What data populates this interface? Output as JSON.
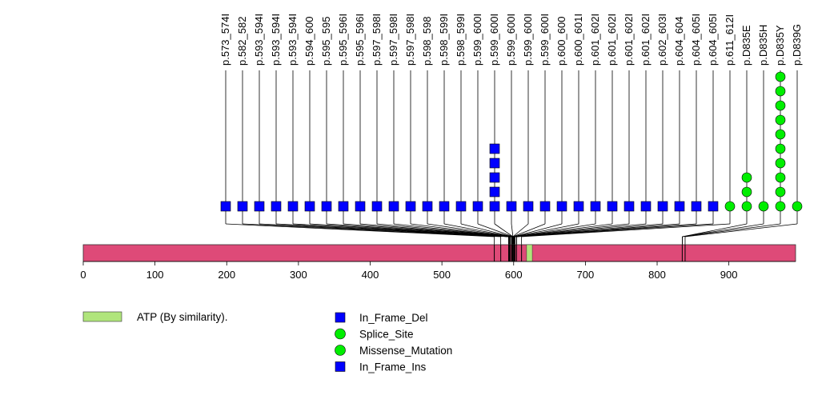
{
  "chart_data": {
    "type": "lollipop",
    "protein_length": 993,
    "axis": {
      "range": [
        0,
        993
      ],
      "ticks": [
        0,
        100,
        200,
        300,
        400,
        500,
        600,
        700,
        800,
        900
      ]
    },
    "colors": {
      "protein_bar": "#de4a78",
      "domain": "#b0e57c",
      "in_frame_del": "#0000ff",
      "in_frame_ins": "#0000ff",
      "splice_site": "#00ee00",
      "missense": "#00ee00",
      "stem": "#000000"
    },
    "domains": [
      {
        "label": "ATP (By similarity).",
        "start": 618,
        "end": 626
      }
    ],
    "lollipops": [
      {
        "label": "p.573_574I",
        "position": 573,
        "count": 1,
        "type": "In_Frame_Ins"
      },
      {
        "label": "p.582_582",
        "position": 582,
        "count": 1,
        "type": "In_Frame_Del"
      },
      {
        "label": "p.593_594I",
        "position": 593,
        "count": 1,
        "type": "In_Frame_Ins"
      },
      {
        "label": "p.593_594I",
        "position": 593,
        "count": 1,
        "type": "In_Frame_Ins"
      },
      {
        "label": "p.593_594I",
        "position": 593,
        "count": 1,
        "type": "In_Frame_Ins"
      },
      {
        "label": "p.594_600",
        "position": 594,
        "count": 1,
        "type": "In_Frame_Del"
      },
      {
        "label": "p.595_595",
        "position": 595,
        "count": 1,
        "type": "In_Frame_Del"
      },
      {
        "label": "p.595_596I",
        "position": 595,
        "count": 1,
        "type": "In_Frame_Ins"
      },
      {
        "label": "p.595_596I",
        "position": 595,
        "count": 1,
        "type": "In_Frame_Ins"
      },
      {
        "label": "p.597_598I",
        "position": 597,
        "count": 1,
        "type": "In_Frame_Ins"
      },
      {
        "label": "p.597_598I",
        "position": 597,
        "count": 1,
        "type": "In_Frame_Ins"
      },
      {
        "label": "p.597_598I",
        "position": 597,
        "count": 1,
        "type": "In_Frame_Ins"
      },
      {
        "label": "p.598_598",
        "position": 598,
        "count": 1,
        "type": "In_Frame_Del"
      },
      {
        "label": "p.598_599I",
        "position": 598,
        "count": 1,
        "type": "In_Frame_Ins"
      },
      {
        "label": "p.598_599I",
        "position": 598,
        "count": 1,
        "type": "In_Frame_Ins"
      },
      {
        "label": "p.599_600I",
        "position": 599,
        "count": 1,
        "type": "In_Frame_Ins"
      },
      {
        "label": "p.599_600I",
        "position": 599,
        "count": 5,
        "type": "In_Frame_Ins"
      },
      {
        "label": "p.599_600I",
        "position": 599,
        "count": 1,
        "type": "In_Frame_Ins"
      },
      {
        "label": "p.599_600I",
        "position": 599,
        "count": 1,
        "type": "In_Frame_Ins"
      },
      {
        "label": "p.599_600I",
        "position": 599,
        "count": 1,
        "type": "In_Frame_Ins"
      },
      {
        "label": "p.600_600",
        "position": 600,
        "count": 1,
        "type": "In_Frame_Del"
      },
      {
        "label": "p.600_601I",
        "position": 600,
        "count": 1,
        "type": "In_Frame_Ins"
      },
      {
        "label": "p.601_602I",
        "position": 601,
        "count": 1,
        "type": "In_Frame_Ins"
      },
      {
        "label": "p.601_602I",
        "position": 601,
        "count": 1,
        "type": "In_Frame_Ins"
      },
      {
        "label": "p.601_602I",
        "position": 601,
        "count": 1,
        "type": "In_Frame_Ins"
      },
      {
        "label": "p.601_602I",
        "position": 601,
        "count": 1,
        "type": "In_Frame_Ins"
      },
      {
        "label": "p.602_603I",
        "position": 602,
        "count": 1,
        "type": "In_Frame_Ins"
      },
      {
        "label": "p.604_604",
        "position": 604,
        "count": 1,
        "type": "In_Frame_Del"
      },
      {
        "label": "p.604_605I",
        "position": 604,
        "count": 1,
        "type": "In_Frame_Ins"
      },
      {
        "label": "p.604_605I",
        "position": 604,
        "count": 1,
        "type": "In_Frame_Ins"
      },
      {
        "label": "p.611_612I",
        "position": 611,
        "count": 1,
        "type": "Splice_Site"
      },
      {
        "label": "p.D835E",
        "position": 835,
        "count": 3,
        "type": "Missense_Mutation"
      },
      {
        "label": "p.D835H",
        "position": 835,
        "count": 1,
        "type": "Missense_Mutation"
      },
      {
        "label": "p.D835Y",
        "position": 835,
        "count": 10,
        "type": "Missense_Mutation"
      },
      {
        "label": "p.D839G",
        "position": 839,
        "count": 1,
        "type": "Missense_Mutation"
      }
    ],
    "legend": [
      {
        "label": "In_Frame_Del",
        "shape": "square",
        "color": "#0000ff"
      },
      {
        "label": "Splice_Site",
        "shape": "circle",
        "color": "#00ee00"
      },
      {
        "label": "Missense_Mutation",
        "shape": "circle",
        "color": "#00ee00"
      },
      {
        "label": "In_Frame_Ins",
        "shape": "square",
        "color": "#0000ff"
      }
    ]
  }
}
